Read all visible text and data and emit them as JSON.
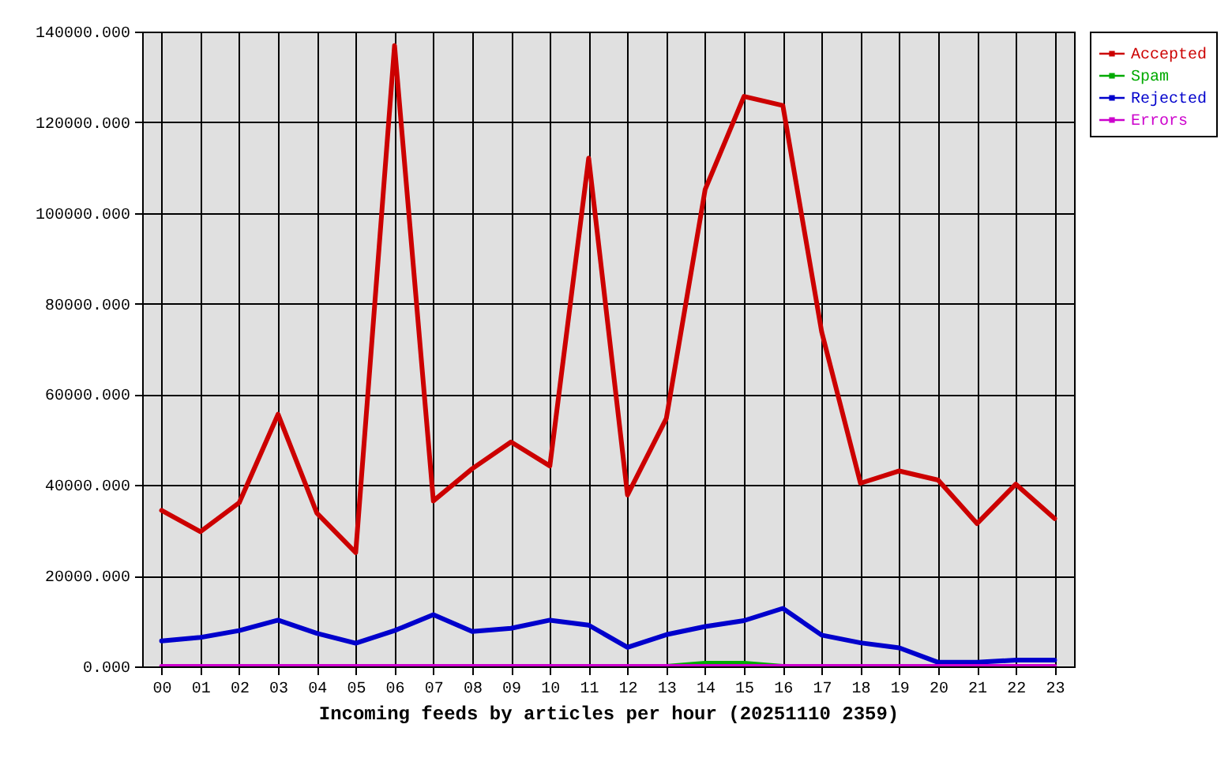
{
  "chart_data": {
    "type": "line",
    "xlabel": "Incoming feeds by articles per hour (20251110 2359)",
    "categories": [
      "00",
      "01",
      "02",
      "03",
      "04",
      "05",
      "06",
      "07",
      "08",
      "09",
      "10",
      "11",
      "12",
      "13",
      "14",
      "15",
      "16",
      "17",
      "18",
      "19",
      "20",
      "21",
      "22",
      "23"
    ],
    "series": [
      {
        "name": "Accepted",
        "color": "#cc0000",
        "values": [
          34400,
          29700,
          36100,
          55600,
          33800,
          25100,
          136900,
          36500,
          43600,
          49500,
          44200,
          112100,
          37800,
          54700,
          105200,
          125700,
          123700,
          73800,
          40400,
          43100,
          41100,
          31500,
          40200,
          32600
        ]
      },
      {
        "name": "Spam",
        "color": "#00aa00",
        "values": [
          null,
          null,
          null,
          null,
          null,
          null,
          null,
          null,
          null,
          null,
          null,
          null,
          null,
          0,
          700,
          700,
          0,
          null,
          null,
          null,
          null,
          null,
          null,
          null
        ]
      },
      {
        "name": "Rejected",
        "color": "#0000cc",
        "values": [
          5600,
          6400,
          7900,
          10200,
          7300,
          5100,
          7900,
          11400,
          7700,
          8400,
          10200,
          9100,
          4200,
          7000,
          8800,
          10100,
          12800,
          6900,
          5200,
          4100,
          900,
          900,
          1400,
          1400
        ]
      },
      {
        "name": "Errors",
        "color": "#cc00cc",
        "values": [
          0,
          0,
          0,
          0,
          0,
          0,
          0,
          0,
          0,
          0,
          0,
          0,
          0,
          0,
          0,
          0,
          0,
          0,
          0,
          0,
          0,
          0,
          0,
          0
        ]
      }
    ],
    "ylim": [
      0,
      140000
    ],
    "yticks": [
      {
        "value": 0,
        "label": "0.000"
      },
      {
        "value": 20000,
        "label": "20000.000"
      },
      {
        "value": 40000,
        "label": "40000.000"
      },
      {
        "value": 60000,
        "label": "60000.000"
      },
      {
        "value": 80000,
        "label": "80000.000"
      },
      {
        "value": 100000,
        "label": "100000.000"
      },
      {
        "value": 120000,
        "label": "120000.000"
      },
      {
        "value": 140000,
        "label": "140000.000"
      }
    ],
    "grid": true,
    "legend": "top right"
  }
}
